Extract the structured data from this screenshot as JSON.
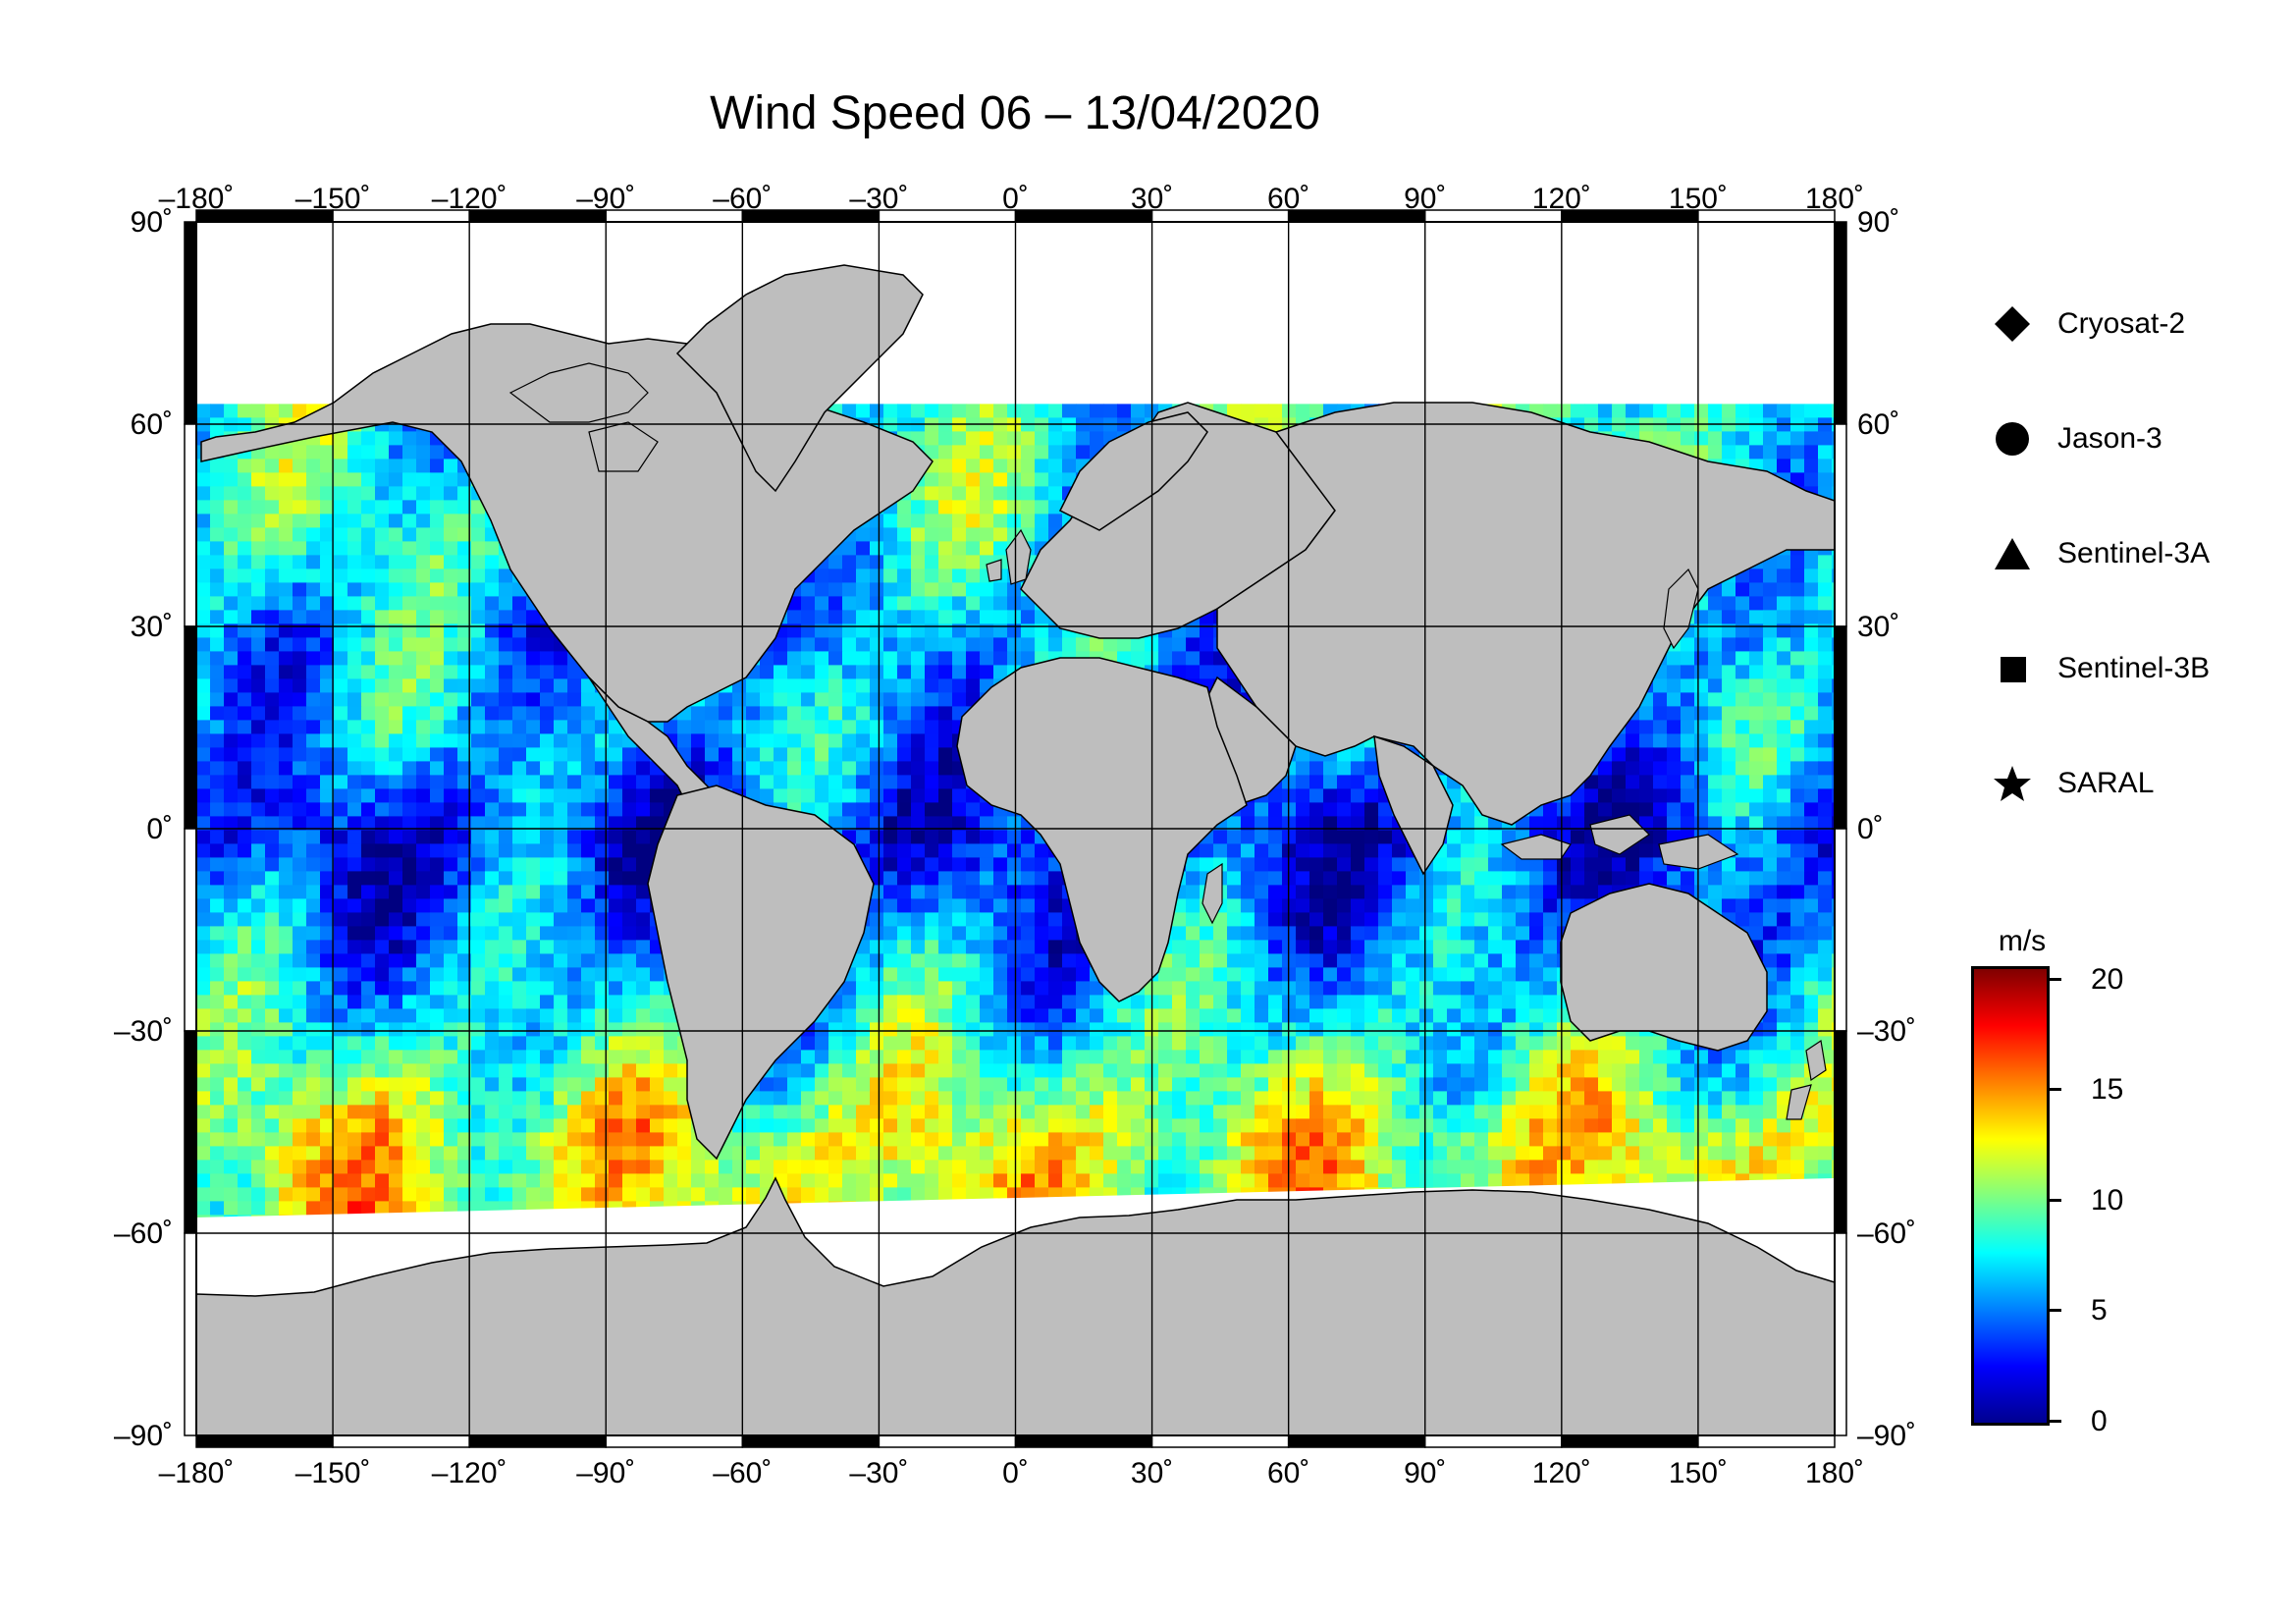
{
  "title": "Wind Speed 06 – 13/04/2020",
  "map": {
    "lon_range": [
      -180,
      180
    ],
    "lat_range": [
      -90,
      90
    ],
    "lon_ticks": [
      "–180˚",
      "–150˚",
      "–120˚",
      "–90˚",
      "–60˚",
      "–30˚",
      "0˚",
      "30˚",
      "60˚",
      "90˚",
      "120˚",
      "150˚",
      "180˚"
    ],
    "lat_ticks": [
      "90˚",
      "60˚",
      "30˚",
      "0˚",
      "–30˚",
      "–60˚",
      "–90˚"
    ],
    "land_color": "#bebebe",
    "ice_color": "#ffffff",
    "grid": true
  },
  "legend": [
    {
      "label": "Cryosat-2",
      "symbol": "diamond-icon"
    },
    {
      "label": "Jason-3",
      "symbol": "circle-icon"
    },
    {
      "label": "Sentinel-3A",
      "symbol": "triangle-icon"
    },
    {
      "label": "Sentinel-3B",
      "symbol": "square-icon"
    },
    {
      "label": "SARAL",
      "symbol": "star-icon"
    }
  ],
  "colorbar": {
    "unit": "m/s",
    "ticks": [
      "20",
      "15",
      "10",
      "5",
      "0"
    ],
    "range": [
      0,
      20
    ],
    "colors": [
      "#00008f",
      "#0000ff",
      "#0080ff",
      "#00ffff",
      "#80ff80",
      "#ffff00",
      "#ff8000",
      "#ff0000",
      "#800000"
    ]
  },
  "chart_data": {
    "type": "heatmap",
    "title": "Wind Speed 06 – 13/04/2020",
    "x_range": [
      -180,
      180
    ],
    "y_range": [
      -90,
      90
    ],
    "value_unit": "m/s",
    "value_range": [
      0,
      20
    ],
    "zonal_mean_wind_by_latitude": [
      {
        "lat": 60,
        "speed": 8
      },
      {
        "lat": 45,
        "speed": 8
      },
      {
        "lat": 30,
        "speed": 6
      },
      {
        "lat": 15,
        "speed": 6
      },
      {
        "lat": 0,
        "speed": 3
      },
      {
        "lat": -15,
        "speed": 5
      },
      {
        "lat": -30,
        "speed": 8
      },
      {
        "lat": -45,
        "speed": 12
      },
      {
        "lat": -60,
        "speed": 12
      }
    ]
  }
}
